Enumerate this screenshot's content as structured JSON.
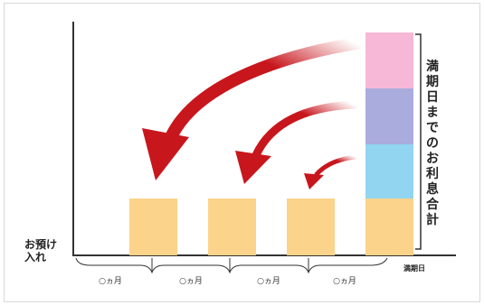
{
  "deposit_label": "お預け入れ",
  "maturity_label": "満期日",
  "interest_total_label": "満期日までのお利息合計",
  "period_labels": [
    "○ヵ月",
    "○ヵ月",
    "○ヵ月",
    "○ヵ月"
  ],
  "colors": {
    "principal": "#fcd38b",
    "interest_pink": "#f7b7d6",
    "interest_lavender": "#a9acdc",
    "interest_blue": "#91d5f1",
    "arrow": "#c8161d",
    "axis": "#333333"
  }
}
